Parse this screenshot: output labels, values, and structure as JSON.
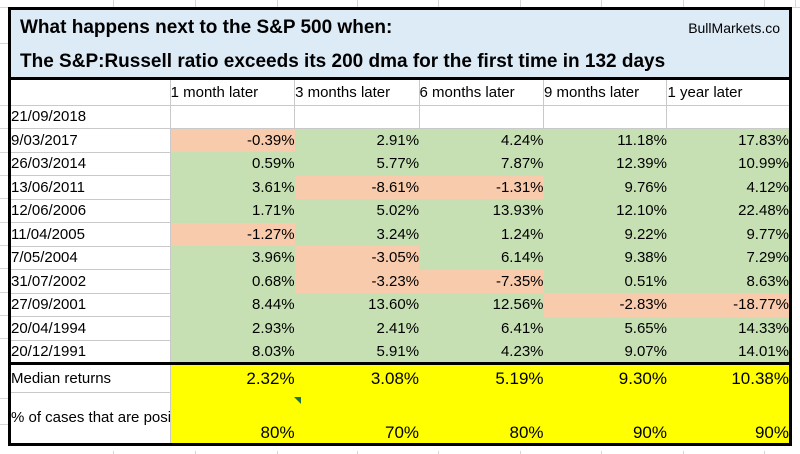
{
  "title": {
    "line1": "What happens next to the S&P 500 when:",
    "line2": "The S&P:Russell ratio exceeds its 200 dma for the first time in 132 days",
    "brand": "BullMarkets.co"
  },
  "table": {
    "columns": [
      "1 month later",
      "3 months later",
      "6 months later",
      "9 months later",
      "1 year later"
    ],
    "rows": [
      {
        "date": "21/09/2018",
        "values": [
          "",
          "",
          "",
          "",
          ""
        ]
      },
      {
        "date": "9/03/2017",
        "values": [
          "-0.39%",
          "2.91%",
          "4.24%",
          "11.18%",
          "17.83%"
        ]
      },
      {
        "date": "26/03/2014",
        "values": [
          "0.59%",
          "5.77%",
          "7.87%",
          "12.39%",
          "10.99%"
        ]
      },
      {
        "date": "13/06/2011",
        "values": [
          "3.61%",
          "-8.61%",
          "-1.31%",
          "9.76%",
          "4.12%"
        ]
      },
      {
        "date": "12/06/2006",
        "values": [
          "1.71%",
          "5.02%",
          "13.93%",
          "12.10%",
          "22.48%"
        ]
      },
      {
        "date": "11/04/2005",
        "values": [
          "-1.27%",
          "3.24%",
          "1.24%",
          "9.22%",
          "9.77%"
        ]
      },
      {
        "date": "7/05/2004",
        "values": [
          "3.96%",
          "-3.05%",
          "6.14%",
          "9.38%",
          "7.29%"
        ]
      },
      {
        "date": "31/07/2002",
        "values": [
          "0.68%",
          "-3.23%",
          "-7.35%",
          "0.51%",
          "8.63%"
        ]
      },
      {
        "date": "27/09/2001",
        "values": [
          "8.44%",
          "13.60%",
          "12.56%",
          "-2.83%",
          "-18.77%"
        ]
      },
      {
        "date": "20/04/1994",
        "values": [
          "2.93%",
          "2.41%",
          "6.41%",
          "5.65%",
          "14.33%"
        ]
      },
      {
        "date": "20/12/1991",
        "values": [
          "8.03%",
          "5.91%",
          "4.23%",
          "9.07%",
          "14.01%"
        ]
      }
    ],
    "summary": [
      {
        "label": "Median returns",
        "values": [
          "2.32%",
          "3.08%",
          "5.19%",
          "9.30%",
          "10.38%"
        ]
      },
      {
        "label": "% of cases that are positive",
        "values": [
          "80%",
          "70%",
          "80%",
          "90%",
          "90%"
        ]
      }
    ]
  },
  "colors": {
    "positive_fill": "#c6e0b4",
    "negative_fill": "#f8cbad",
    "summary_fill": "#ffff00",
    "title_fill": "#ddebf7",
    "flag_green": "#1f7244"
  }
}
